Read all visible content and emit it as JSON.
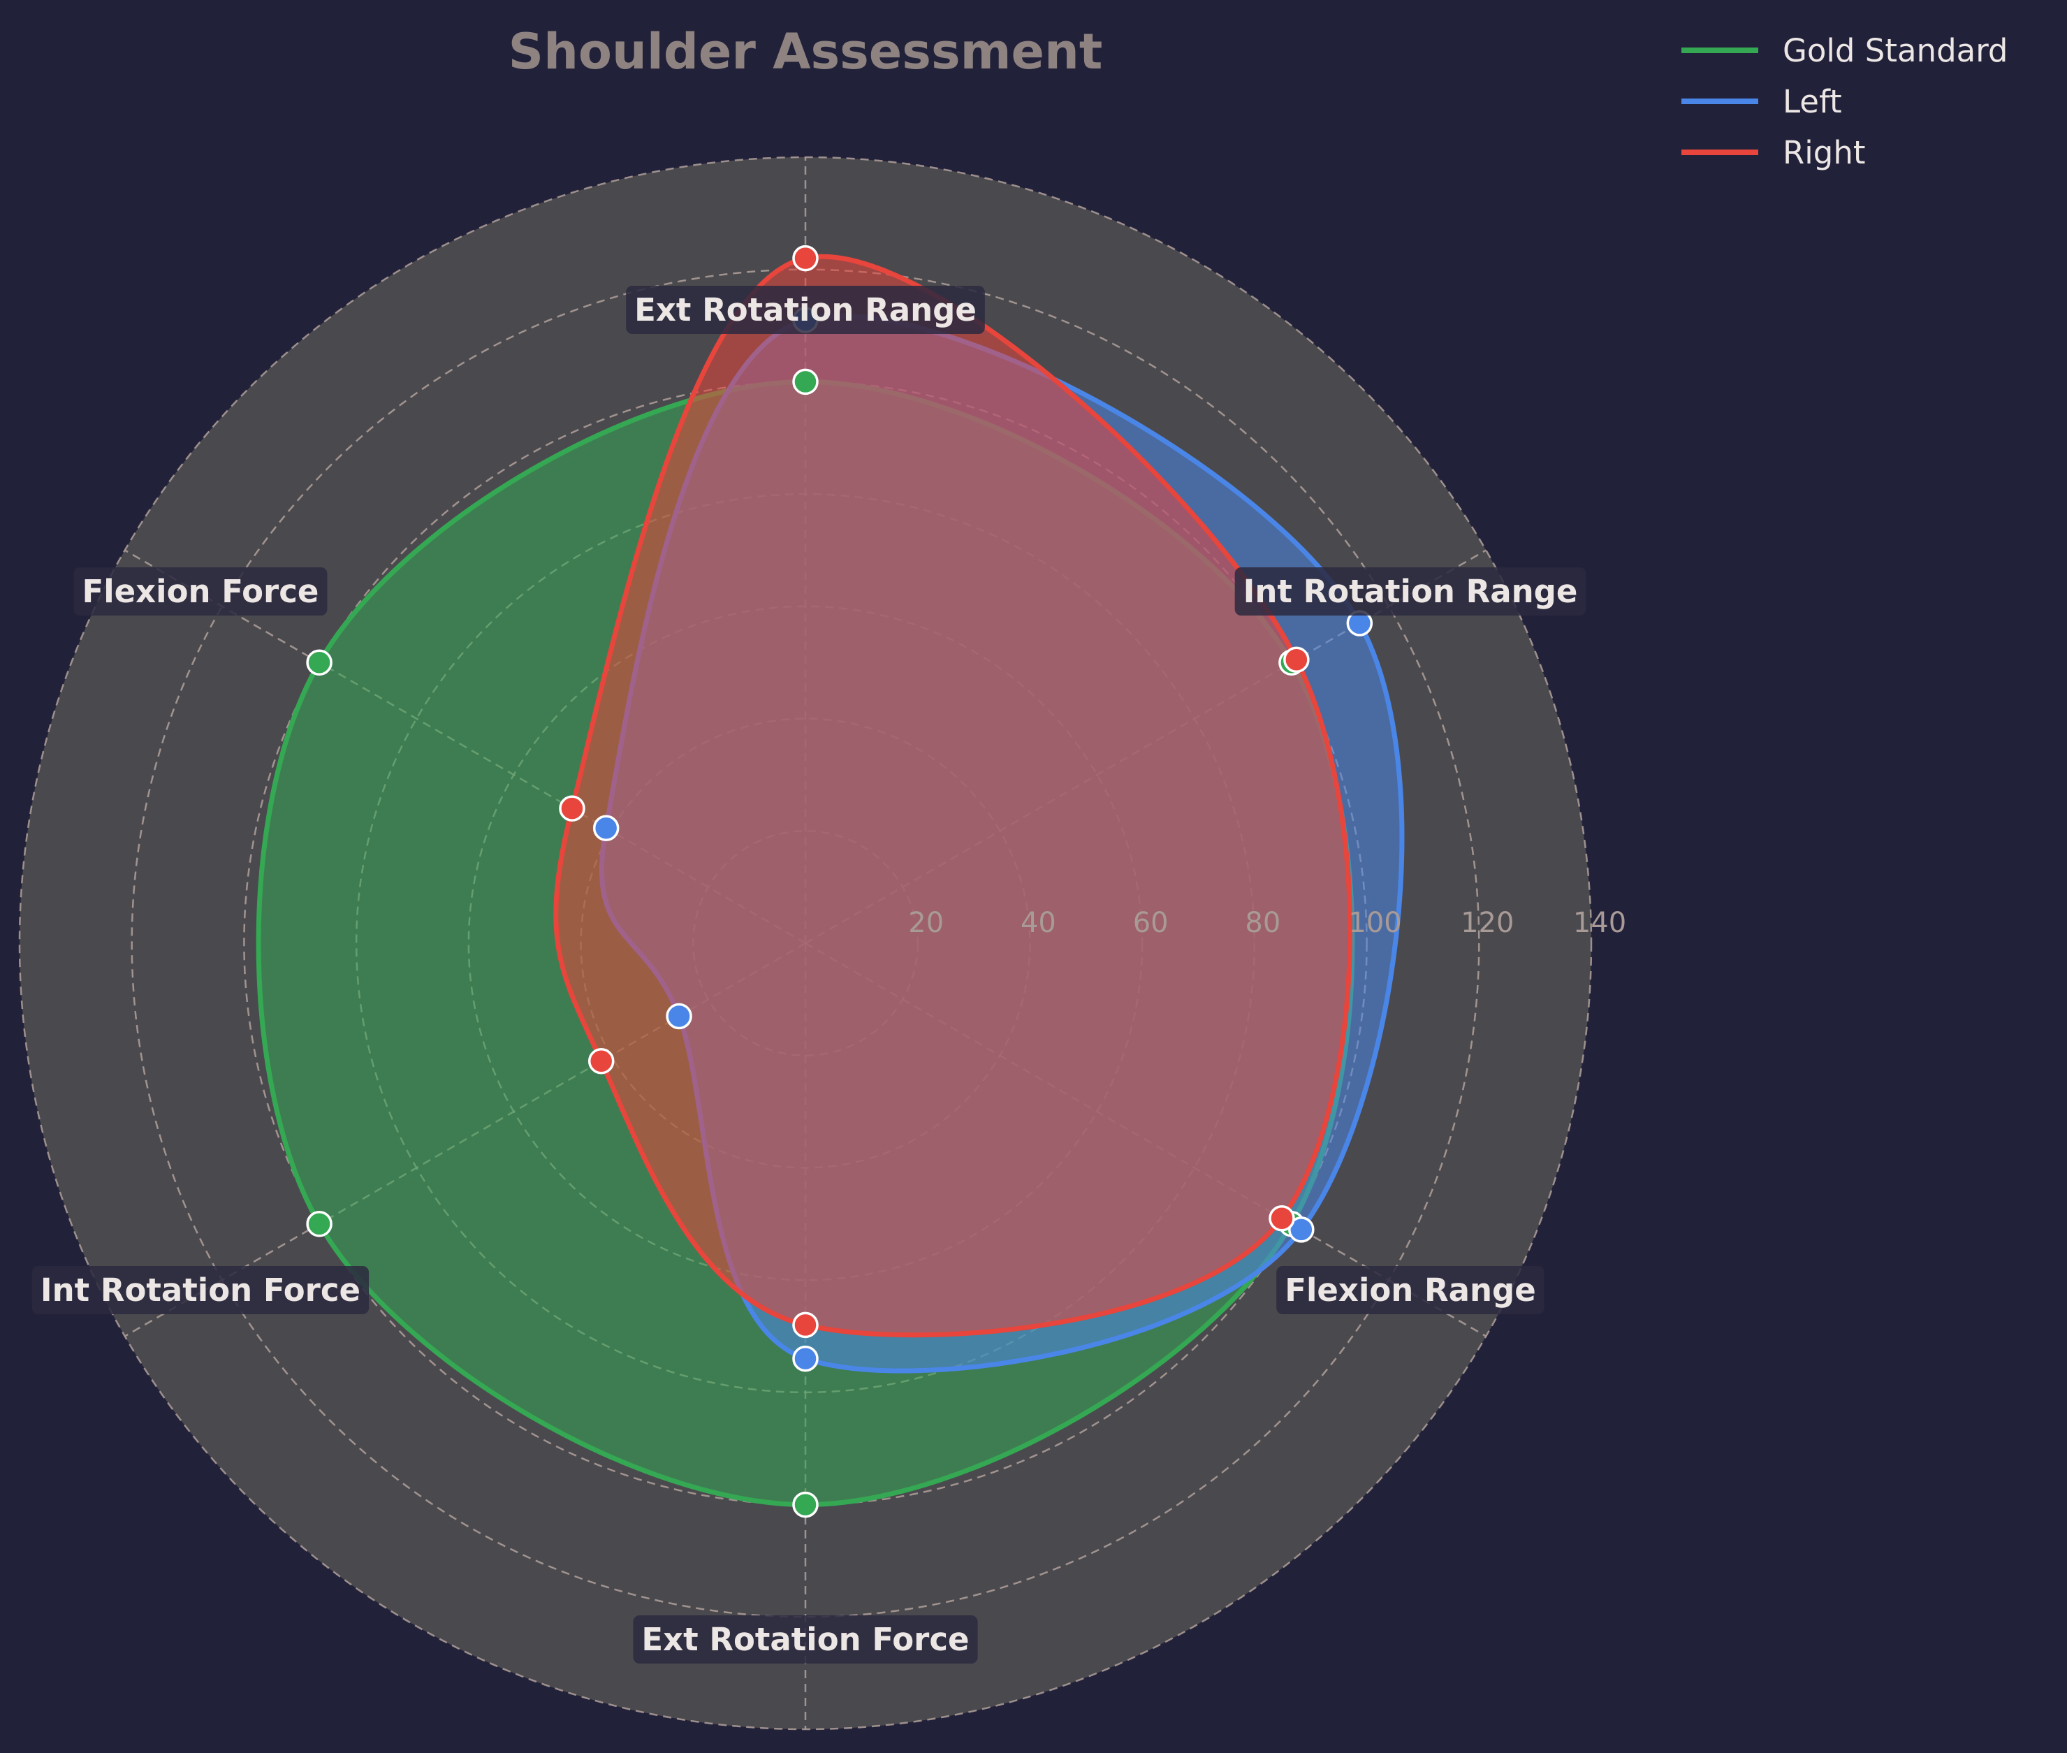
{
  "chart_data": {
    "type": "radar",
    "title": "Shoulder Assessment",
    "axes": [
      "Ext Rotation Range",
      "Int Rotation Range",
      "Flexion Range",
      "Ext Rotation Force",
      "Int Rotation Force",
      "Flexion Force"
    ],
    "rlim": [
      0,
      140
    ],
    "rticks": [
      20,
      40,
      60,
      80,
      100,
      120,
      140
    ],
    "grid": true,
    "legend_position": "top-right",
    "series": [
      {
        "name": "Gold Standard",
        "color": "#35a853",
        "values": [
          100,
          100,
          100,
          100,
          100,
          100
        ]
      },
      {
        "name": "Left",
        "color": "#4a86e8",
        "values": [
          111,
          114,
          102,
          74,
          26,
          41
        ]
      },
      {
        "name": "Right",
        "color": "#e8453c",
        "values": [
          122,
          101,
          98,
          68,
          42,
          48
        ]
      }
    ]
  }
}
